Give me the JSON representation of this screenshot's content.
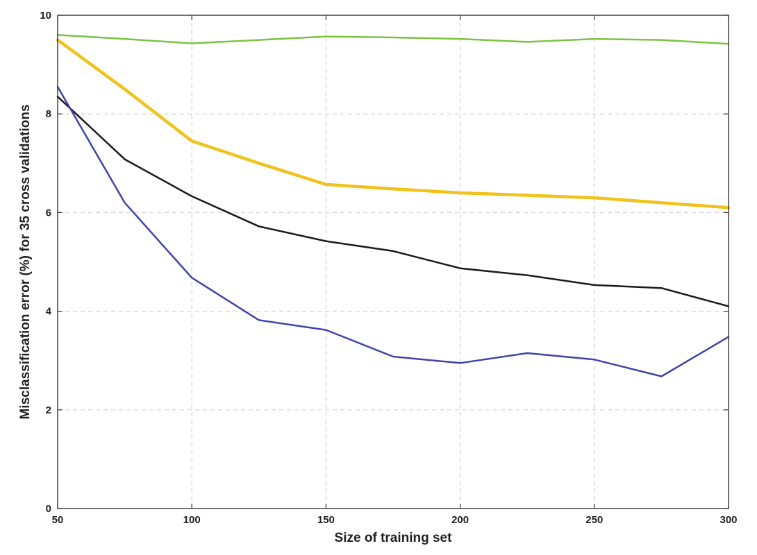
{
  "chart_data": {
    "type": "line",
    "title": "",
    "xlabel": "Size of training set",
    "ylabel": "Misclassification error (%) for 35 cross validations",
    "xlim": [
      50,
      300
    ],
    "ylim": [
      0,
      10
    ],
    "xticks": [
      50,
      100,
      150,
      200,
      250,
      300
    ],
    "yticks": [
      0,
      2,
      4,
      6,
      8,
      10
    ],
    "grid": true,
    "legend": "none",
    "x": [
      50,
      75,
      100,
      125,
      150,
      175,
      200,
      225,
      250,
      275,
      300
    ],
    "series": [
      {
        "color": "#7cc242",
        "width": 2.5,
        "values": [
          9.6,
          9.52,
          9.43,
          9.5,
          9.57,
          9.55,
          9.52,
          9.46,
          9.52,
          9.5,
          9.42
        ]
      },
      {
        "color": "#f2c21b",
        "width": 4.5,
        "values": [
          9.5,
          8.5,
          7.45,
          7.0,
          6.57,
          6.48,
          6.4,
          6.35,
          6.3,
          6.2,
          6.1
        ]
      },
      {
        "color": "#1a1a1a",
        "width": 2.5,
        "values": [
          8.35,
          7.08,
          6.33,
          5.72,
          5.42,
          5.22,
          4.87,
          4.73,
          4.53,
          4.47,
          4.1
        ]
      },
      {
        "color": "#3f43a8",
        "width": 2.5,
        "values": [
          8.55,
          6.2,
          4.68,
          3.82,
          3.62,
          3.08,
          2.95,
          3.15,
          3.02,
          2.68,
          3.48
        ]
      }
    ]
  }
}
